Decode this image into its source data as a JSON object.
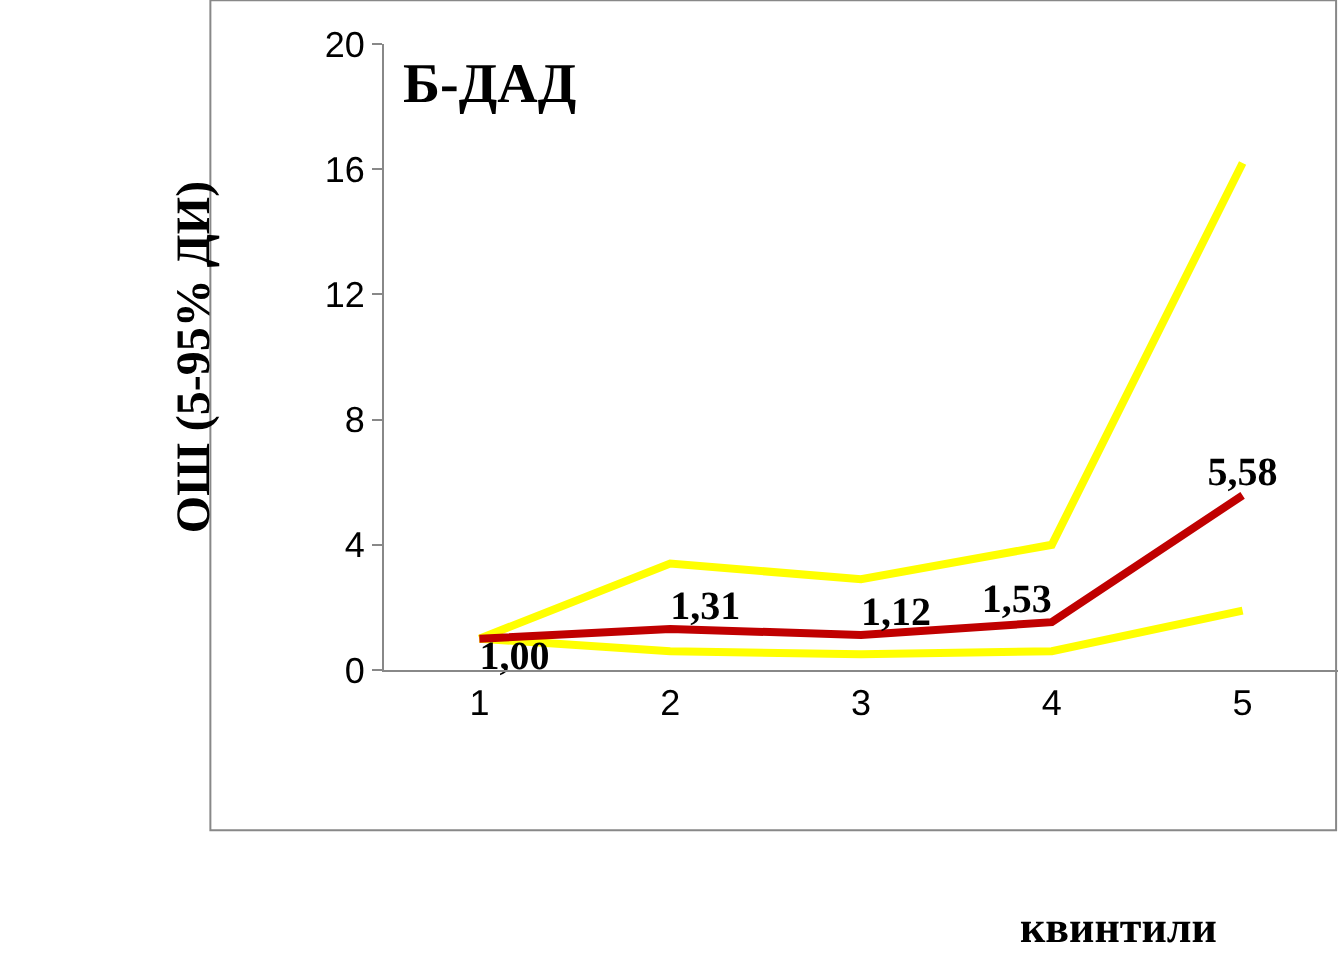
{
  "chart_data": {
    "type": "line",
    "title": "Б-ДАД",
    "xlabel": "квинтили",
    "ylabel": "ОШ (5-95% ДИ)",
    "categories": [
      "1",
      "2",
      "3",
      "4",
      "5"
    ],
    "series": [
      {
        "color": "#ffff00",
        "values": [
          1.0,
          3.4,
          2.9,
          4.0,
          16.2
        ]
      },
      {
        "color": "#ffff00",
        "values": [
          1.0,
          0.6,
          0.5,
          0.6,
          1.9
        ]
      },
      {
        "color": "#c00000",
        "values": [
          1.0,
          1.31,
          1.12,
          1.53,
          5.58
        ],
        "value_labels": [
          "1,00",
          "1,31",
          "1,12",
          "1,53",
          "5,58"
        ]
      }
    ],
    "ylim": [
      0,
      20
    ],
    "yticks": [
      0,
      4,
      8,
      12,
      16,
      20
    ],
    "marker": "none",
    "line_style": "solid"
  }
}
